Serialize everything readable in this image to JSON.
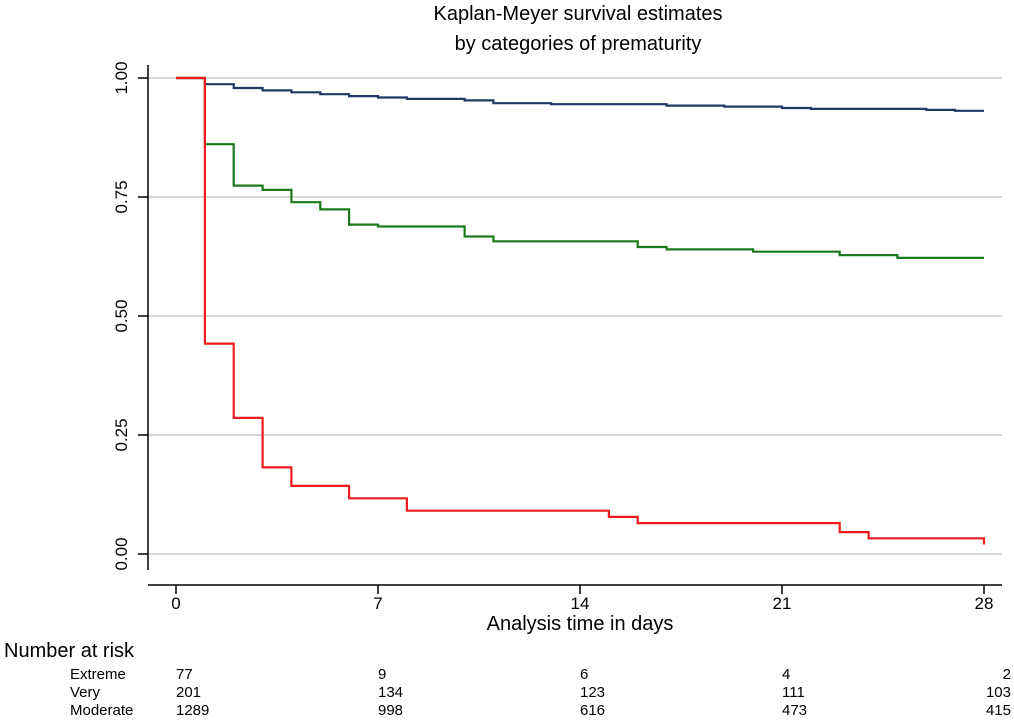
{
  "chart_data": {
    "type": "line",
    "title": [
      "Kaplan-Meyer survival estimates",
      "by categories of prematurity"
    ],
    "xlabel": "Analysis time in days",
    "ylabel": "",
    "xlim": [
      0,
      28
    ],
    "ylim": [
      0,
      1
    ],
    "x_ticks": [
      "0",
      "7",
      "14",
      "21",
      "28"
    ],
    "y_ticks": [
      "0.00",
      "0.25",
      "0.50",
      "0.75",
      "1.00"
    ],
    "grid": true,
    "series": [
      {
        "name": "Moderate",
        "color": "#1f3864",
        "steps": [
          [
            0,
            1.0
          ],
          [
            1,
            0.987
          ],
          [
            2,
            0.979
          ],
          [
            3,
            0.974
          ],
          [
            4,
            0.97
          ],
          [
            5,
            0.966
          ],
          [
            6,
            0.962
          ],
          [
            7,
            0.959
          ],
          [
            8,
            0.956
          ],
          [
            10,
            0.953
          ],
          [
            11,
            0.947
          ],
          [
            13,
            0.945
          ],
          [
            17,
            0.942
          ],
          [
            19,
            0.94
          ],
          [
            21,
            0.937
          ],
          [
            22,
            0.935
          ],
          [
            26,
            0.933
          ],
          [
            27,
            0.931
          ],
          [
            28,
            0.931
          ]
        ]
      },
      {
        "name": "Very",
        "color": "#1a7a1a",
        "steps": [
          [
            0,
            1.0
          ],
          [
            1,
            0.861
          ],
          [
            2,
            0.774
          ],
          [
            3,
            0.765
          ],
          [
            4,
            0.739
          ],
          [
            5,
            0.724
          ],
          [
            6,
            0.692
          ],
          [
            7,
            0.688
          ],
          [
            10,
            0.667
          ],
          [
            11,
            0.657
          ],
          [
            16,
            0.645
          ],
          [
            17,
            0.64
          ],
          [
            20,
            0.635
          ],
          [
            23,
            0.628
          ],
          [
            25,
            0.622
          ],
          [
            28,
            0.622
          ]
        ]
      },
      {
        "name": "Extreme",
        "color": "#ee1c1c",
        "steps": [
          [
            0,
            1.0
          ],
          [
            1,
            0.442
          ],
          [
            2,
            0.286
          ],
          [
            3,
            0.182
          ],
          [
            4,
            0.143
          ],
          [
            6,
            0.117
          ],
          [
            8,
            0.091
          ],
          [
            15,
            0.078
          ],
          [
            16,
            0.065
          ],
          [
            23,
            0.046
          ],
          [
            24,
            0.033
          ],
          [
            28,
            0.02
          ]
        ]
      }
    ],
    "risk_table": {
      "heading": "Number at risk",
      "times": [
        0,
        7,
        14,
        21,
        28
      ],
      "rows": [
        {
          "label": "Extreme",
          "values": [
            "77",
            "9",
            "6",
            "4",
            "2"
          ]
        },
        {
          "label": "Very",
          "values": [
            "201",
            "134",
            "123",
            "111",
            "103"
          ]
        },
        {
          "label": "Moderate",
          "values": [
            "1289",
            "998",
            "616",
            "473",
            "415"
          ]
        }
      ]
    }
  }
}
